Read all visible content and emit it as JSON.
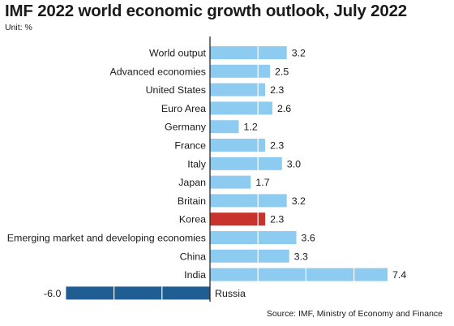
{
  "title": "IMF 2022 world economic growth outlook, July 2022",
  "unit": "Unit: %",
  "source": "Source: IMF, Ministry of Economy and Finance",
  "colors": {
    "bar": "#8ecbf1",
    "highlight": "#c8332b",
    "negative": "#1f5d92",
    "axis": "#2a2a2a",
    "divider": "#ffffff"
  },
  "chart_data": {
    "type": "bar",
    "orientation": "horizontal",
    "categories": [
      "World output",
      "Advanced economies",
      "United States",
      "Euro Area",
      "Germany",
      "France",
      "Italy",
      "Japan",
      "Britain",
      "Korea",
      "Emerging market and developing economies",
      "China",
      "India",
      "Russia"
    ],
    "values": [
      3.2,
      2.5,
      2.3,
      2.6,
      1.2,
      2.3,
      3.0,
      1.7,
      3.2,
      2.3,
      3.6,
      3.3,
      7.4,
      -6.0
    ],
    "value_labels": [
      "3.2",
      "2.5",
      "2.3",
      "2.6",
      "1.2",
      "2.3",
      "3.0",
      "1.7",
      "3.2",
      "2.3",
      "3.6",
      "3.3",
      "7.4",
      "-6.0"
    ],
    "highlight": "Korea",
    "xlim": [
      -6.0,
      7.4
    ],
    "grid": false,
    "legend": "none"
  }
}
